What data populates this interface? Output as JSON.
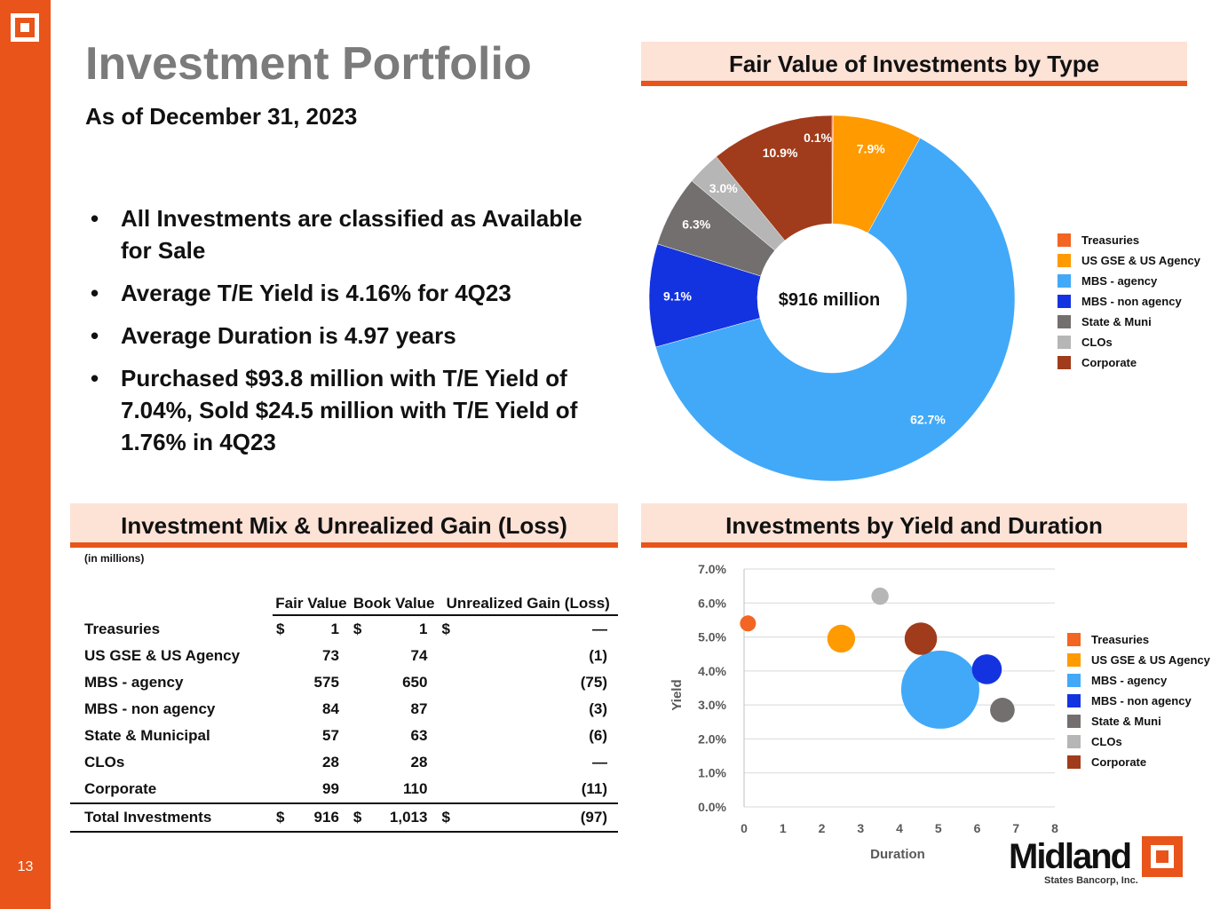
{
  "page": {
    "title": "Investment Portfolio",
    "subtitle": "As of December 31, 2023",
    "page_number": "13",
    "bullets": [
      "All Investments are classified as Available for Sale",
      "Average T/E Yield is 4.16% for 4Q23",
      "Average Duration is 4.97 years",
      "Purchased $93.8 million with T/E Yield of 7.04%, Sold $24.5 million with T/E Yield of 1.76% in 4Q23"
    ],
    "bullet_glyph": "•"
  },
  "brand": {
    "name": "Midland",
    "tagline": "States Bancorp, Inc.",
    "accent_color": "#e8541a",
    "header_fill": "#fde2d6"
  },
  "mix_table": {
    "header": "Investment Mix & Unrealized Gain (Loss)",
    "units_note": "(in millions)",
    "columns": [
      "Fair Value",
      "Book Value",
      "Unrealized Gain (Loss)"
    ],
    "rows": [
      {
        "name": "Treasuries",
        "cur": "$",
        "fair": "1",
        "book": "1",
        "gain": "—"
      },
      {
        "name": "US GSE & US Agency",
        "cur": "",
        "fair": "73",
        "book": "74",
        "gain": "(1)"
      },
      {
        "name": "MBS - agency",
        "cur": "",
        "fair": "575",
        "book": "650",
        "gain": "(75)"
      },
      {
        "name": "MBS - non agency",
        "cur": "",
        "fair": "84",
        "book": "87",
        "gain": "(3)"
      },
      {
        "name": "State & Municipal",
        "cur": "",
        "fair": "57",
        "book": "63",
        "gain": "(6)"
      },
      {
        "name": "CLOs",
        "cur": "",
        "fair": "28",
        "book": "28",
        "gain": "—"
      },
      {
        "name": "Corporate",
        "cur": "",
        "fair": "99",
        "book": "110",
        "gain": "(11)"
      }
    ],
    "total": {
      "name": "Total Investments",
      "cur": "$",
      "fair": "916",
      "book": "1,013",
      "gain": "(97)"
    }
  },
  "chart_data": [
    {
      "type": "pie",
      "title": "Fair Value of Investments by Type",
      "center_label": "$916 million",
      "slices": [
        {
          "name": "Treasuries",
          "value": 0.1,
          "label": "0.1%",
          "color": "#f26522"
        },
        {
          "name": "US GSE & US Agency",
          "value": 7.9,
          "label": "7.9%",
          "color": "#ff9a00"
        },
        {
          "name": "MBS - agency",
          "value": 62.7,
          "label": "62.7%",
          "color": "#41a9f8"
        },
        {
          "name": "MBS - non agency",
          "value": 9.1,
          "label": "9.1%",
          "color": "#1433e0"
        },
        {
          "name": "State & Muni",
          "value": 6.3,
          "label": "6.3%",
          "color": "#736f6e"
        },
        {
          "name": "CLOs",
          "value": 3.0,
          "label": "3.0%",
          "color": "#b6b6b6"
        },
        {
          "name": "Corporate",
          "value": 10.9,
          "label": "10.9%",
          "color": "#a03c1b"
        }
      ],
      "legend_placement": "right"
    },
    {
      "type": "scatter",
      "subtype": "bubble",
      "title": "Investments by Yield and Duration",
      "xlabel": "Duration",
      "ylabel": "Yield",
      "xlim": [
        0,
        8
      ],
      "ylim": [
        0,
        7
      ],
      "x_ticks": [
        "0",
        "1",
        "2",
        "3",
        "4",
        "5",
        "6",
        "7",
        "8"
      ],
      "y_ticks": [
        "0.0%",
        "1.0%",
        "2.0%",
        "3.0%",
        "4.0%",
        "5.0%",
        "6.0%",
        "7.0%"
      ],
      "grid": true,
      "legend_placement": "right",
      "series": [
        {
          "name": "Treasuries",
          "x": 0.1,
          "y": 5.4,
          "size": 1,
          "color": "#f26522"
        },
        {
          "name": "US GSE & US Agency",
          "x": 2.5,
          "y": 4.95,
          "size": 73,
          "color": "#ff9a00"
        },
        {
          "name": "MBS - agency",
          "x": 5.05,
          "y": 3.45,
          "size": 575,
          "color": "#41a9f8"
        },
        {
          "name": "MBS - non agency",
          "x": 6.25,
          "y": 4.05,
          "size": 84,
          "color": "#1433e0"
        },
        {
          "name": "State & Muni",
          "x": 6.65,
          "y": 2.85,
          "size": 57,
          "color": "#736f6e"
        },
        {
          "name": "CLOs",
          "x": 3.5,
          "y": 6.2,
          "size": 28,
          "color": "#b6b6b6"
        },
        {
          "name": "Corporate",
          "x": 4.55,
          "y": 4.95,
          "size": 99,
          "color": "#a03c1b"
        }
      ]
    }
  ]
}
